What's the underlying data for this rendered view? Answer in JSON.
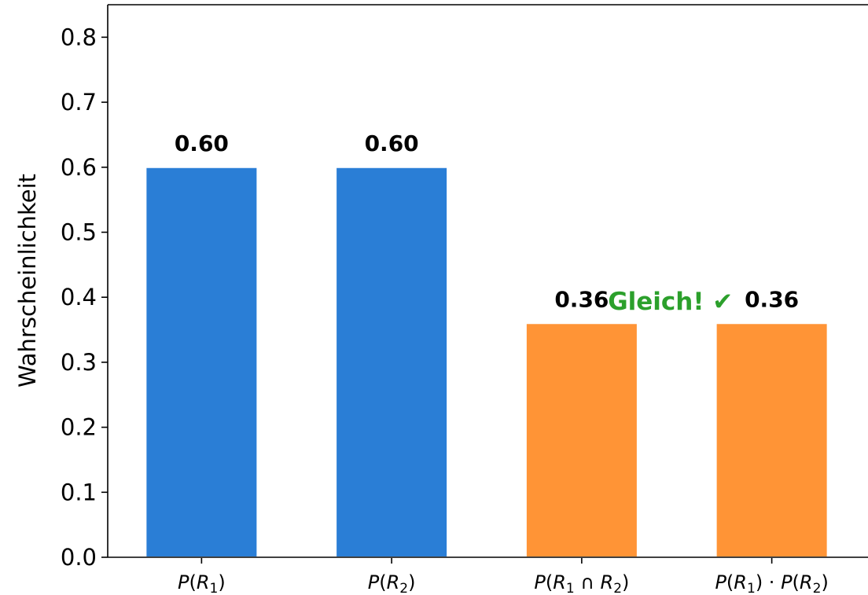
{
  "chart_data": {
    "type": "bar",
    "categories": [
      {
        "parts": [
          {
            "t": "P",
            "it": true
          },
          {
            "t": "("
          },
          {
            "t": "R",
            "it": true
          },
          {
            "t": "1",
            "sub": true
          },
          {
            "t": ")"
          }
        ]
      },
      {
        "parts": [
          {
            "t": "P",
            "it": true
          },
          {
            "t": "("
          },
          {
            "t": "R",
            "it": true
          },
          {
            "t": "2",
            "sub": true
          },
          {
            "t": ")"
          }
        ]
      },
      {
        "parts": [
          {
            "t": "P",
            "it": true
          },
          {
            "t": "("
          },
          {
            "t": "R",
            "it": true
          },
          {
            "t": "1",
            "sub": true
          },
          {
            "t": " ∩ "
          },
          {
            "t": "R",
            "it": true
          },
          {
            "t": "2",
            "sub": true
          },
          {
            "t": ")"
          }
        ]
      },
      {
        "parts": [
          {
            "t": "P",
            "it": true
          },
          {
            "t": "("
          },
          {
            "t": "R",
            "it": true
          },
          {
            "t": "1",
            "sub": true
          },
          {
            "t": ") · "
          },
          {
            "t": "P",
            "it": true
          },
          {
            "t": "("
          },
          {
            "t": "R",
            "it": true
          },
          {
            "t": "2",
            "sub": true
          },
          {
            "t": ")"
          }
        ]
      }
    ],
    "values": [
      0.6,
      0.6,
      0.36,
      0.36
    ],
    "value_labels": [
      "0.60",
      "0.60",
      "0.36",
      "0.36"
    ],
    "bar_colors": [
      "#2a7ed6",
      "#2a7ed6",
      "#ff9436",
      "#ff9436"
    ],
    "title": "",
    "xlabel": "",
    "ylabel": "Wahrscheinlichkeit",
    "ylim": [
      0,
      0.85
    ],
    "yticks": [
      0.0,
      0.1,
      0.2,
      0.3,
      0.4,
      0.5,
      0.6,
      0.7,
      0.8
    ],
    "ytick_labels": [
      "0.0",
      "0.1",
      "0.2",
      "0.3",
      "0.4",
      "0.5",
      "0.6",
      "0.7",
      "0.8"
    ],
    "grid": false,
    "annotation": {
      "text": "Gleich! ✔",
      "color": "#2ca02c",
      "y": 0.4
    },
    "legend": "none"
  }
}
